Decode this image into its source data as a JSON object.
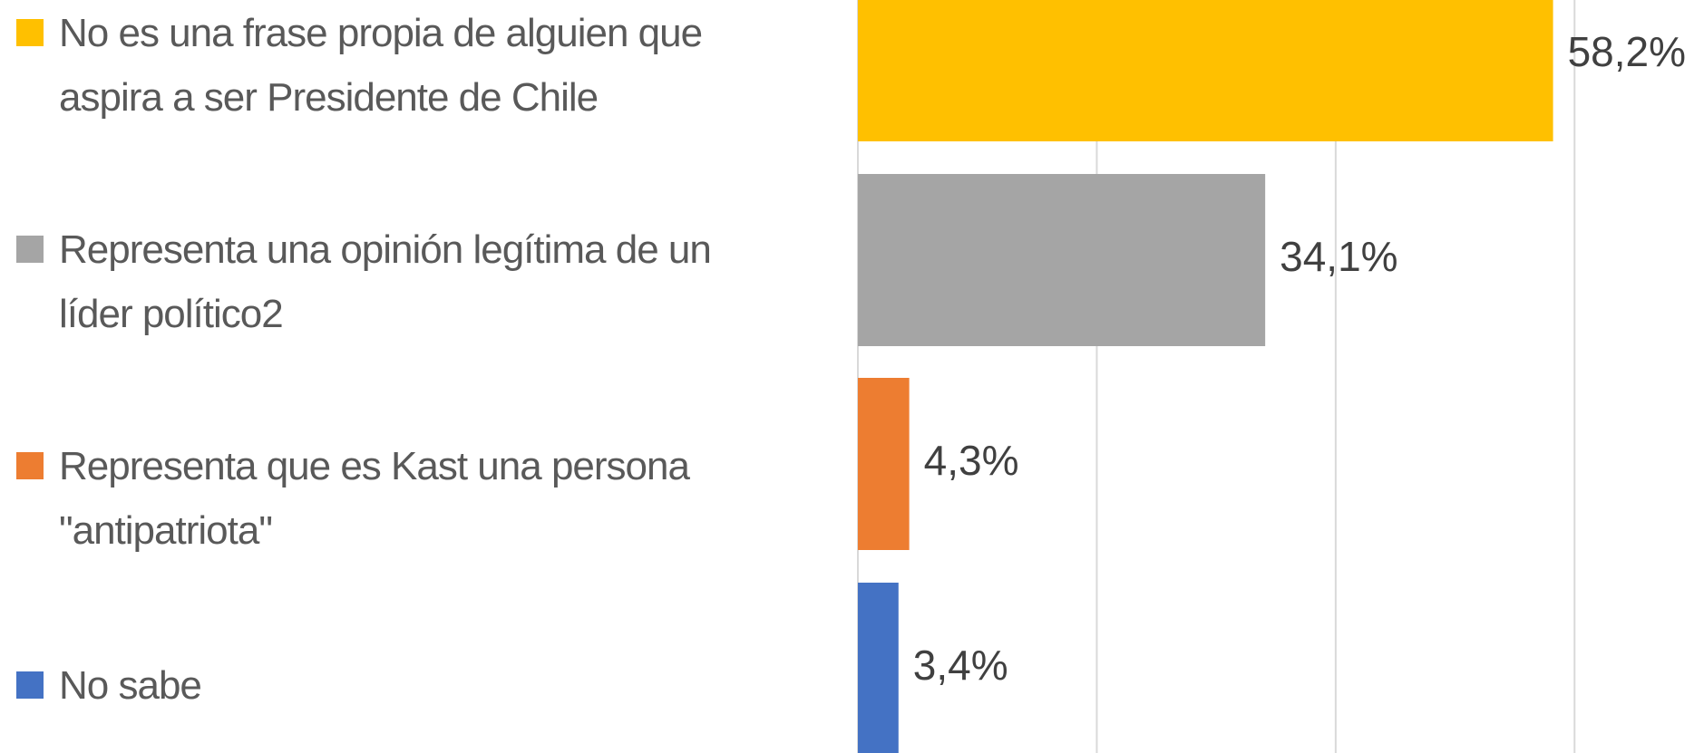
{
  "chart_data": {
    "type": "hbar",
    "categories": [
      "No es una frase propia de alguien que aspira a ser Presidente de Chile",
      "Representa una opinión legítima de un líder político2",
      "Representa que es Kast una persona \"antipatriota\"",
      "No sabe"
    ],
    "series": [
      {
        "name": null,
        "colors": [
          "#ffc000",
          "#a5a5a5",
          "#ed7d31",
          "#4472c4"
        ],
        "values": [
          58.2,
          34.1,
          4.3,
          3.4
        ],
        "value_labels": [
          "58,2%",
          "34,1%",
          "4,3%",
          "3,4%"
        ]
      }
    ],
    "xlim": [
      0,
      70
    ],
    "xticks": [
      0,
      20,
      40,
      60
    ],
    "grid": true
  }
}
